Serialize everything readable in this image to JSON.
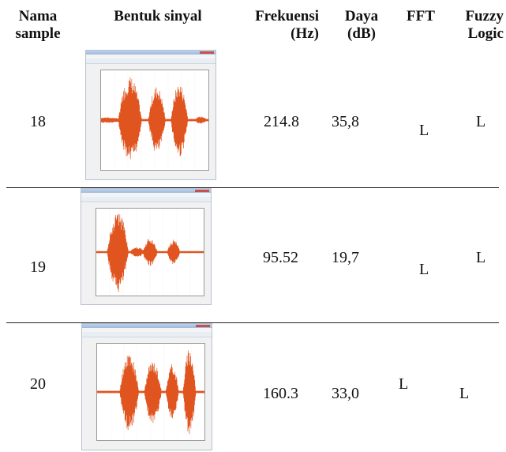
{
  "headers": {
    "nama_line1": "Nama",
    "nama_line2": "sample",
    "bentuk": "Bentuk sinyal",
    "frek_line1": "Frekuensi",
    "frek_line2": "(Hz)",
    "daya_line1": "Daya",
    "daya_line2": "(dB)",
    "fft": "FFT",
    "fuzzy_line1": "Fuzzy",
    "fuzzy_line2": "Logic"
  },
  "signal_color": "#e0541f",
  "rows": [
    {
      "sample": "18",
      "frekuensi": "214.8",
      "daya": "35,8",
      "fft": "L",
      "fuzzy": "L"
    },
    {
      "sample": "19",
      "frekuensi": "95.52",
      "daya": "19,7",
      "fft": "L",
      "fuzzy": "L"
    },
    {
      "sample": "20",
      "frekuensi": "160.3",
      "daya": "33,0",
      "fft": "L",
      "fuzzy": "L"
    }
  ]
}
